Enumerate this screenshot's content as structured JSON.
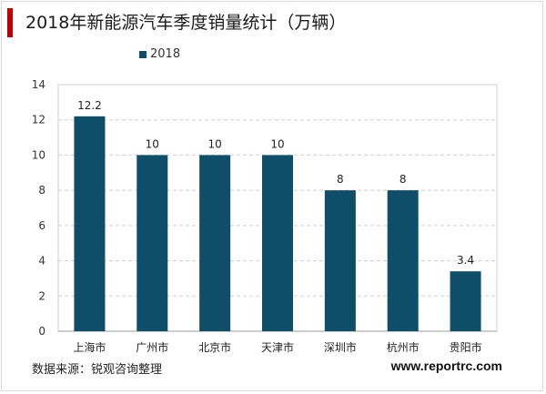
{
  "title": "2018年新能源汽车季度销量统计（万辆）",
  "legend_label": "2018",
  "source": "数据来源：锐观咨询整理",
  "website": "www.reportrc.com",
  "colors": {
    "bar": "#0f4e69",
    "accent": "#c00000",
    "grid": "#d0d0d0"
  },
  "chart_data": {
    "type": "bar",
    "title": "2018年新能源汽车季度销量统计（万辆）",
    "categories": [
      "上海市",
      "广州市",
      "北京市",
      "天津市",
      "深圳市",
      "杭州市",
      "贵阳市"
    ],
    "series": [
      {
        "name": "2018",
        "values": [
          12.2,
          10,
          10,
          10,
          8,
          8,
          3.4
        ]
      }
    ],
    "data_labels": [
      "12.2",
      "10",
      "10",
      "10",
      "8",
      "8",
      "3.4"
    ],
    "y_ticks": [
      0,
      2,
      4,
      6,
      8,
      10,
      12,
      14
    ],
    "ylim": [
      0,
      14
    ],
    "xlabel": "",
    "ylabel": "",
    "grid": true,
    "legend_position": "top-left"
  }
}
